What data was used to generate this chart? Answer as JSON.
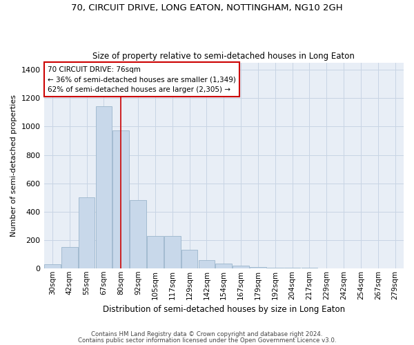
{
  "title_line1": "70, CIRCUIT DRIVE, LONG EATON, NOTTINGHAM, NG10 2GH",
  "title_line2": "Size of property relative to semi-detached houses in Long Eaton",
  "xlabel": "Distribution of semi-detached houses by size in Long Eaton",
  "ylabel": "Number of semi-detached properties",
  "bins": [
    "30sqm",
    "42sqm",
    "55sqm",
    "67sqm",
    "80sqm",
    "92sqm",
    "105sqm",
    "117sqm",
    "129sqm",
    "142sqm",
    "154sqm",
    "167sqm",
    "179sqm",
    "192sqm",
    "204sqm",
    "217sqm",
    "229sqm",
    "242sqm",
    "254sqm",
    "267sqm",
    "279sqm"
  ],
  "bar_values": [
    30,
    150,
    500,
    1145,
    975,
    480,
    230,
    230,
    130,
    55,
    35,
    20,
    8,
    5,
    3,
    2,
    1,
    0,
    0,
    0,
    0
  ],
  "bar_color": "#c8d8ea",
  "bar_edge_color": "#9bb5cc",
  "vline_x_index": 4,
  "annotation_text_line1": "70 CIRCUIT DRIVE: 76sqm",
  "annotation_text_line2": "← 36% of semi-detached houses are smaller (1,349)",
  "annotation_text_line3": "62% of semi-detached houses are larger (2,305) →",
  "annotation_box_facecolor": "#ffffff",
  "annotation_box_edgecolor": "#cc0000",
  "vline_color": "#cc0000",
  "grid_color": "#c8d4e4",
  "background_color": "#e8eef6",
  "footer_line1": "Contains HM Land Registry data © Crown copyright and database right 2024.",
  "footer_line2": "Contains public sector information licensed under the Open Government Licence v3.0.",
  "ylim": [
    0,
    1450
  ],
  "yticks": [
    0,
    200,
    400,
    600,
    800,
    1000,
    1200,
    1400
  ]
}
